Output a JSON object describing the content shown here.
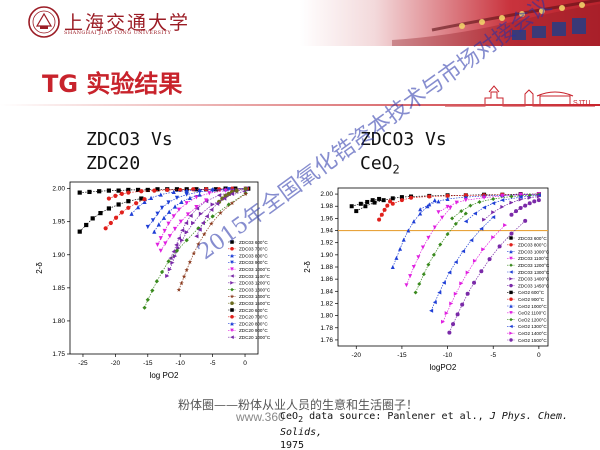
{
  "header": {
    "logo_title": "上海交通大学",
    "logo_subtitle": "SHANGHAI JIAO TONG UNIVERSITY",
    "emblem_icon": "sjtu-emblem-icon",
    "roof_decor": "roof-eaves-icon"
  },
  "slide": {
    "title": "TG 实验结果",
    "left_label_line1": "ZDCO3 Vs",
    "left_label_line2": "ZDC20",
    "right_label_line1": "ZDCO3 Vs",
    "right_label_line2": "CeO",
    "right_label_sub": "2",
    "skyline_text": "SJTU",
    "watermark": "2015年全国氧化锆资本技术与市场对接会议",
    "footer_cn": "粉体圈——粉体从业人员的生意和生活圈子！",
    "footer_url": "www.360",
    "source_prefix": "CeO",
    "source_sub": "2",
    "source_text": " data source: Panlener et al., ",
    "source_journal": "J Phys. Chem. Solids,",
    "source_year": "1975"
  },
  "colors": {
    "brand_red": "#c8232c",
    "header_red": "#b8232d",
    "watermark_blue": "#2531a8",
    "orange_line": "#e8a33c"
  },
  "chart_data": [
    {
      "type": "scatter",
      "xlabel": "log PO2",
      "ylabel": "2-δ",
      "xlim": [
        -27,
        2
      ],
      "ylim": [
        1.75,
        2.01
      ],
      "xticks": [
        -25,
        -20,
        -15,
        -10,
        -5,
        0
      ],
      "yticks": [
        1.75,
        1.8,
        1.85,
        1.9,
        1.95,
        2.0
      ],
      "legend_position": "right",
      "series": [
        {
          "name": "ZDC03 600°C",
          "color": "#000000",
          "marker": "square",
          "x": [
            -25.5,
            -24,
            -22.5,
            -21,
            -19.5,
            -18,
            -16.5,
            -15,
            -13.5,
            -12,
            -10.5,
            -9,
            -7.5,
            -6,
            -4.5,
            -3,
            -1.5,
            0.5
          ],
          "y": [
            1.994,
            1.995,
            1.996,
            1.997,
            1.997,
            1.998,
            1.998,
            1.998,
            1.999,
            1.999,
            1.999,
            1.999,
            1.999,
            1.999,
            1.999,
            2.0,
            2.0,
            2.0
          ]
        },
        {
          "name": "ZDC03 700°C",
          "color": "#e0201c",
          "marker": "circle",
          "x": [
            -21,
            -20,
            -19,
            -18,
            -16,
            -14,
            -12,
            -10,
            -8,
            -6,
            -4,
            -2,
            0.3
          ],
          "y": [
            1.985,
            1.989,
            1.992,
            1.994,
            1.996,
            1.997,
            1.998,
            1.998,
            1.999,
            1.999,
            1.999,
            2.0,
            2.0
          ]
        },
        {
          "name": "ZDC03 800°C",
          "color": "#1f3fd6",
          "marker": "triangle-up",
          "x": [
            -17.5,
            -16.5,
            -15.5,
            -14.5,
            -13,
            -11,
            -9,
            -7,
            -5,
            -3,
            0.2
          ],
          "y": [
            1.962,
            1.972,
            1.98,
            1.986,
            1.991,
            1.995,
            1.997,
            1.998,
            1.999,
            1.999,
            2.0
          ]
        },
        {
          "name": "ZDC03 900°C",
          "color": "#1f3fd6",
          "marker": "triangle-down",
          "x": [
            -15,
            -14.2,
            -13.5,
            -12.8,
            -11.8,
            -10.5,
            -9,
            -7,
            -5,
            -2.5,
            0.2
          ],
          "y": [
            1.942,
            1.952,
            1.962,
            1.971,
            1.979,
            1.986,
            1.991,
            1.995,
            1.997,
            1.999,
            2.0
          ]
        },
        {
          "name": "ZDC03 1000°C",
          "color": "#e020e0",
          "marker": "triangle-down",
          "x": [
            -13.5,
            -13,
            -12.4,
            -11.8,
            -11,
            -10.2,
            -9,
            -7.5,
            -5.5,
            -3,
            0.1
          ],
          "y": [
            1.915,
            1.925,
            1.936,
            1.947,
            1.958,
            1.968,
            1.978,
            1.987,
            1.993,
            1.997,
            2.0
          ]
        },
        {
          "name": "ZDC03 1100°C",
          "color": "#7a2aa8",
          "marker": "triangle-left",
          "x": [
            -11.5,
            -11,
            -10.6,
            -10.2,
            -9.7,
            -9.1,
            -8.4,
            -7.4,
            -6,
            -4,
            -1.5,
            0.1
          ],
          "y": [
            1.895,
            1.905,
            1.915,
            1.925,
            1.937,
            1.948,
            1.959,
            1.97,
            1.981,
            1.99,
            1.996,
            1.999
          ]
        },
        {
          "name": "ZDC03 1200°C",
          "color": "#7a2aa8",
          "marker": "triangle-right",
          "x": [
            -12,
            -11.6,
            -11.2,
            -10.8,
            -10.3,
            -9.7,
            -9,
            -8,
            -6.8,
            -5,
            -2.8,
            0.1
          ],
          "y": [
            1.868,
            1.878,
            1.888,
            1.898,
            1.91,
            1.922,
            1.934,
            1.948,
            1.962,
            1.976,
            1.988,
            1.997
          ]
        },
        {
          "name": "ZDC03 1300°C",
          "color": "#3a8a1e",
          "marker": "diamond",
          "x": [
            -15.5,
            -15,
            -14.3,
            -13.6,
            -12.8,
            -11.8,
            -10.5,
            -9,
            -7.2,
            -5,
            -2.5,
            0.1
          ],
          "y": [
            1.82,
            1.832,
            1.846,
            1.86,
            1.874,
            1.89,
            1.906,
            1.922,
            1.94,
            1.958,
            1.976,
            1.993
          ]
        },
        {
          "name": "ZDC03 1400°C",
          "color": "#8a3a1e",
          "marker": "star",
          "x": [
            -10.2,
            -9.8,
            -9.4,
            -9,
            -8.5,
            -7.9,
            -7.2,
            -6.3,
            -5.2,
            -3.8,
            -2,
            0.1
          ],
          "y": [
            1.847,
            1.857,
            1.867,
            1.877,
            1.889,
            1.902,
            1.916,
            1.931,
            1.947,
            1.963,
            1.978,
            1.992
          ]
        },
        {
          "name": "ZDC03 1500°C",
          "color": "#6b6b1e",
          "marker": "circle",
          "x": [
            -4,
            -3.5,
            -3,
            -2.5,
            -2,
            -1.3,
            0.1
          ],
          "y": [
            1.98,
            1.985,
            1.989,
            1.992,
            1.995,
            1.997,
            2.0
          ]
        },
        {
          "name": "ZDC20 600°C",
          "color": "#000000",
          "marker": "square",
          "x": [
            -25.5,
            -24.5,
            -23.5,
            -22.3,
            -21,
            -19.5,
            -18,
            -16
          ],
          "y": [
            1.935,
            1.945,
            1.955,
            1.963,
            1.97,
            1.976,
            1.981,
            1.985
          ]
        },
        {
          "name": "ZDC20 700°C",
          "color": "#e0201c",
          "marker": "circle",
          "x": [
            -21.5,
            -20.7,
            -19.9,
            -19,
            -18,
            -16.8,
            -15.5
          ],
          "y": [
            1.94,
            1.948,
            1.956,
            1.964,
            1.971,
            1.978,
            1.984
          ]
        },
        {
          "name": "ZDC20 800°C",
          "color": "#1f3fd6",
          "marker": "triangle-up",
          "x": [
            -14,
            -13.3,
            -12.5,
            -11.7,
            -10.8,
            -9.8,
            -8.5,
            -7
          ],
          "y": [
            1.935,
            1.946,
            1.956,
            1.965,
            1.973,
            1.98,
            1.986,
            1.991
          ]
        },
        {
          "name": "ZDC20 900°C",
          "color": "#e020e0",
          "marker": "triangle-down",
          "x": [
            -13,
            -12.3,
            -11.6,
            -10.8,
            -9.9,
            -8.8,
            -7.5,
            -6
          ],
          "y": [
            1.906,
            1.917,
            1.928,
            1.939,
            1.95,
            1.961,
            1.972,
            1.982
          ]
        },
        {
          "name": "ZDC20 1000°C",
          "color": "#7a2aa8",
          "marker": "triangle-left",
          "x": [
            -7.5,
            -7,
            -6.5,
            -5.9,
            -5.2,
            -4.3,
            -3.2,
            -2
          ],
          "y": [
            1.928,
            1.938,
            1.948,
            1.958,
            1.968,
            1.977,
            1.985,
            1.992
          ]
        }
      ]
    },
    {
      "type": "scatter",
      "xlabel": "logPO2",
      "ylabel": "2-δ",
      "xlim": [
        -22,
        1
      ],
      "ylim": [
        1.75,
        2.01
      ],
      "xticks": [
        -20,
        -15,
        -10,
        -5,
        0
      ],
      "yticks": [
        1.76,
        1.78,
        1.8,
        1.82,
        1.84,
        1.86,
        1.88,
        1.9,
        1.92,
        1.94,
        1.96,
        1.98,
        2.0
      ],
      "reference_line_y": 1.94,
      "legend_position": "right",
      "series": [
        {
          "name": "ZDC03 600°C",
          "color": "#000000",
          "marker": "square",
          "x": [
            -20,
            -19,
            -18,
            -17,
            -16,
            -15,
            -14,
            -12,
            -10,
            -8,
            -6,
            -4,
            -2,
            0
          ],
          "y": [
            1.972,
            1.98,
            1.986,
            1.99,
            1.993,
            1.995,
            1.996,
            1.997,
            1.998,
            1.998,
            1.999,
            1.999,
            2.0,
            2.0
          ]
        },
        {
          "name": "ZDC03 800°C",
          "color": "#e0201c",
          "marker": "circle",
          "x": [
            -16,
            -15,
            -14,
            -12,
            -10,
            -8,
            -6,
            -4,
            -2,
            0
          ],
          "y": [
            1.984,
            1.99,
            1.994,
            1.996,
            1.997,
            1.998,
            1.998,
            1.999,
            1.999,
            2.0
          ]
        },
        {
          "name": "ZDC03 1000°C",
          "color": "#1f3fd6",
          "marker": "triangle-up",
          "x": [
            -13,
            -12,
            -11,
            -10,
            -8,
            -6,
            -4,
            -2,
            0
          ],
          "y": [
            1.975,
            1.983,
            1.988,
            1.992,
            1.995,
            1.997,
            1.998,
            1.999,
            2.0
          ]
        },
        {
          "name": "ZDC03 1100°C",
          "color": "#e020e0",
          "marker": "triangle-down",
          "x": [
            -11,
            -10,
            -9,
            -8,
            -6,
            -4,
            -2,
            0
          ],
          "y": [
            1.97,
            1.979,
            1.986,
            1.99,
            1.994,
            1.997,
            1.999,
            2.0
          ]
        },
        {
          "name": "ZDC03 1200°C",
          "color": "#3a8a1e",
          "marker": "diamond",
          "x": [
            -9.5,
            -8.5,
            -7.5,
            -6.5,
            -5,
            -3,
            -1,
            0
          ],
          "y": [
            1.96,
            1.972,
            1.981,
            1.987,
            1.992,
            1.996,
            1.998,
            1.999
          ]
        },
        {
          "name": "ZDC03 1300°C",
          "color": "#1f3fd6",
          "marker": "triangle-left",
          "x": [
            -8,
            -7,
            -6,
            -5,
            -4,
            -2,
            0
          ],
          "y": [
            1.955,
            1.968,
            1.978,
            1.985,
            1.99,
            1.995,
            1.998
          ]
        },
        {
          "name": "ZDC03 1400°C",
          "color": "#7a2aa8",
          "marker": "triangle-right",
          "x": [
            -6,
            -5,
            -4,
            -3,
            -2,
            -1,
            0
          ],
          "y": [
            1.958,
            1.97,
            1.979,
            1.986,
            1.991,
            1.994,
            1.996
          ]
        },
        {
          "name": "ZDC03 1450°C",
          "color": "#7a2aa8",
          "marker": "circle",
          "x": [
            -3,
            -2.5,
            -2,
            -1.5,
            -1,
            -0.5,
            0
          ],
          "y": [
            1.966,
            1.972,
            1.977,
            1.981,
            1.985,
            1.988,
            1.99
          ]
        },
        {
          "name": "CeO2 600°C",
          "color": "#000000",
          "marker": "square",
          "x": [
            -20.5,
            -19.5,
            -18.8,
            -18.2,
            -17.5
          ],
          "y": [
            1.98,
            1.984,
            1.987,
            1.99,
            1.992
          ]
        },
        {
          "name": "CeO2 900°C",
          "color": "#e0201c",
          "marker": "circle",
          "x": [
            -17.5,
            -17.2,
            -16.9,
            -16.6,
            -16.3
          ],
          "y": [
            1.958,
            1.966,
            1.974,
            1.981,
            1.988
          ]
        },
        {
          "name": "CeO2 1000°C",
          "color": "#1f3fd6",
          "marker": "triangle-up",
          "x": [
            -16,
            -15.6,
            -15.2,
            -14.8,
            -14.3,
            -13.7,
            -13,
            -12.2,
            -11.4
          ],
          "y": [
            1.88,
            1.895,
            1.91,
            1.925,
            1.94,
            1.955,
            1.968,
            1.98,
            1.99
          ]
        },
        {
          "name": "CeO2 1100°C",
          "color": "#e020e0",
          "marker": "triangle-down",
          "x": [
            -14.5,
            -14.1,
            -13.7,
            -13.2,
            -12.7,
            -12.1,
            -11.4,
            -10.6,
            -9.7
          ],
          "y": [
            1.85,
            1.865,
            1.88,
            1.896,
            1.912,
            1.928,
            1.945,
            1.961,
            1.977
          ]
        },
        {
          "name": "CeO2 1200°C",
          "color": "#3a8a1e",
          "marker": "diamond",
          "x": [
            -13.5,
            -13.1,
            -12.6,
            -12.1,
            -11.5,
            -10.8,
            -10,
            -9.1,
            -8
          ],
          "y": [
            1.838,
            1.852,
            1.868,
            1.884,
            1.9,
            1.917,
            1.934,
            1.951,
            1.968
          ]
        },
        {
          "name": "CeO2 1300°C",
          "color": "#1f3fd6",
          "marker": "triangle-left",
          "x": [
            -11.8,
            -11.4,
            -10.9,
            -10.4,
            -9.8,
            -9.1,
            -8.3,
            -7.4,
            -6.3,
            -5
          ],
          "y": [
            1.808,
            1.822,
            1.838,
            1.854,
            1.871,
            1.888,
            1.906,
            1.924,
            1.943,
            1.962
          ]
        },
        {
          "name": "CeO2 1400°C",
          "color": "#e020e0",
          "marker": "triangle-right",
          "x": [
            -10.5,
            -10.1,
            -9.6,
            -9.1,
            -8.5,
            -7.8,
            -7,
            -6.1,
            -5,
            -3.7
          ],
          "y": [
            1.79,
            1.804,
            1.82,
            1.836,
            1.853,
            1.871,
            1.89,
            1.909,
            1.929,
            1.949
          ]
        },
        {
          "name": "CeO2 1500°C",
          "color": "#7a2aa8",
          "marker": "circle",
          "x": [
            -9.8,
            -9.4,
            -8.9,
            -8.4,
            -7.8,
            -7.1,
            -6.3,
            -5.4,
            -4.3,
            -3,
            -1.5
          ],
          "y": [
            1.772,
            1.786,
            1.802,
            1.818,
            1.836,
            1.854,
            1.873,
            1.893,
            1.914,
            1.935,
            1.956
          ]
        }
      ]
    }
  ]
}
